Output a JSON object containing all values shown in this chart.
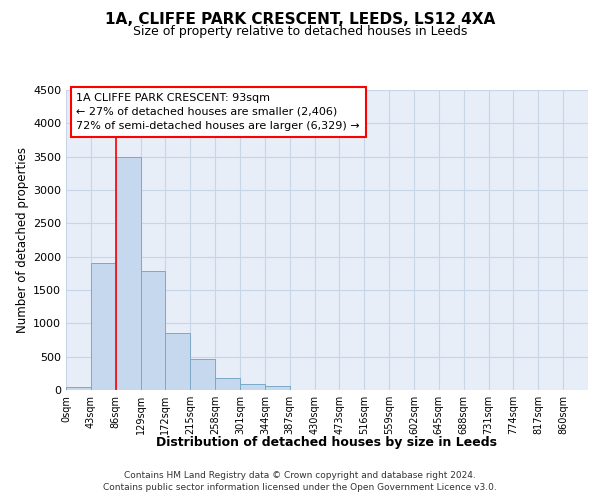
{
  "title_line1": "1A, CLIFFE PARK CRESCENT, LEEDS, LS12 4XA",
  "title_line2": "Size of property relative to detached houses in Leeds",
  "xlabel": "Distribution of detached houses by size in Leeds",
  "ylabel": "Number of detached properties",
  "bar_color": "#c5d8ed",
  "bar_edge_color": "#7aaac8",
  "categories": [
    "0sqm",
    "43sqm",
    "86sqm",
    "129sqm",
    "172sqm",
    "215sqm",
    "258sqm",
    "301sqm",
    "344sqm",
    "387sqm",
    "430sqm",
    "473sqm",
    "516sqm",
    "559sqm",
    "602sqm",
    "645sqm",
    "688sqm",
    "731sqm",
    "774sqm",
    "817sqm",
    "860sqm"
  ],
  "values": [
    40,
    1900,
    3500,
    1780,
    860,
    460,
    175,
    90,
    55,
    0,
    0,
    0,
    0,
    0,
    0,
    0,
    0,
    0,
    0,
    0,
    0
  ],
  "ylim": [
    0,
    4500
  ],
  "yticks": [
    0,
    500,
    1000,
    1500,
    2000,
    2500,
    3000,
    3500,
    4000,
    4500
  ],
  "red_line_x": 2.0,
  "annotation_line1": "1A CLIFFE PARK CRESCENT: 93sqm",
  "annotation_line2": "← 27% of detached houses are smaller (2,406)",
  "annotation_line3": "72% of semi-detached houses are larger (6,329) →",
  "footer_line1": "Contains HM Land Registry data © Crown copyright and database right 2024.",
  "footer_line2": "Contains public sector information licensed under the Open Government Licence v3.0.",
  "grid_color": "#c8d4e8",
  "background_color": "#e8eef8"
}
